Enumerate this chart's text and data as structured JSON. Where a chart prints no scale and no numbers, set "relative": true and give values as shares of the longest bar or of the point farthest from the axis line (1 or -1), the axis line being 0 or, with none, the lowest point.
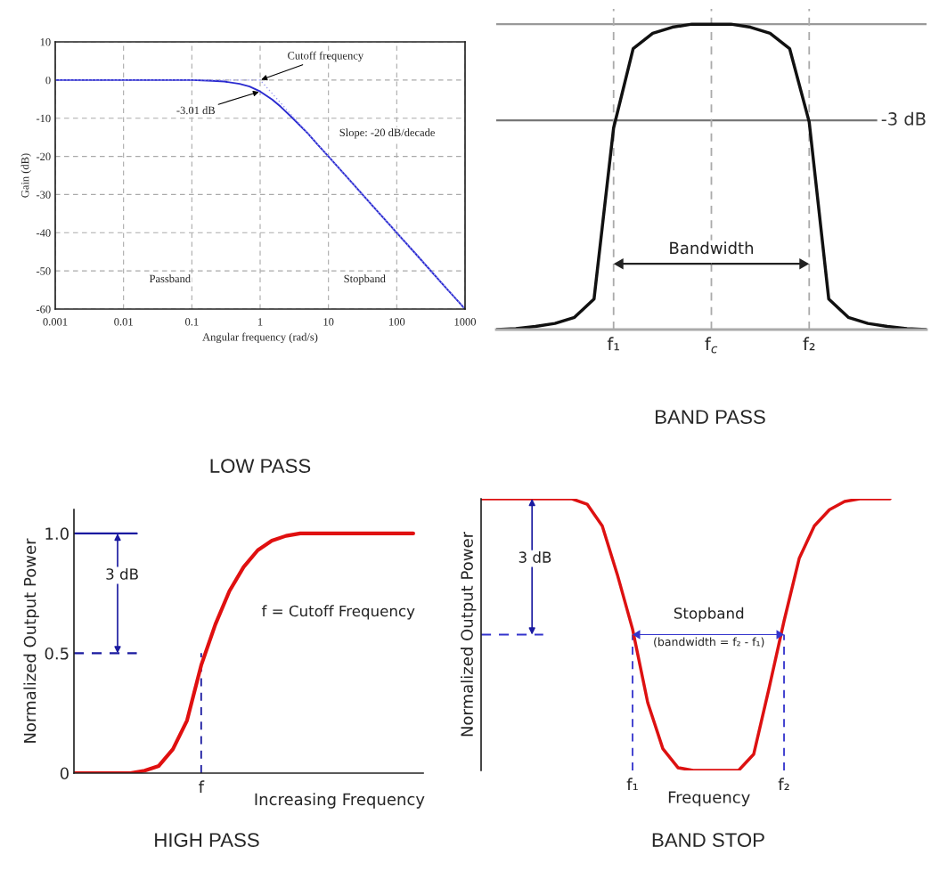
{
  "chart_data": [
    {
      "type": "line",
      "title": "LOW PASS",
      "xlabel": "Angular frequency (rad/s)",
      "ylabel": "Gain (dB)",
      "log": "x",
      "xlim": [
        0.001,
        1000
      ],
      "xticks": [
        0.001,
        0.01,
        0.1,
        1,
        10,
        100,
        1000
      ],
      "ylim": [
        -60,
        10
      ],
      "yticks": [
        -60,
        -50,
        -40,
        -30,
        -20,
        -10,
        0,
        10
      ],
      "grid": true,
      "series": [
        {
          "color": "#2b2bd0",
          "x": [
            0.001,
            0.01,
            0.1,
            0.2,
            0.3,
            0.5,
            0.7,
            1,
            1.5,
            2,
            3,
            5,
            7,
            10,
            20,
            50,
            100,
            200,
            500,
            1000
          ],
          "values": [
            0,
            0,
            0,
            -0.2,
            -0.4,
            -1,
            -1.7,
            -3,
            -5.1,
            -7,
            -10,
            -14,
            -17,
            -20,
            -26,
            -34,
            -40,
            -46,
            -54,
            -60
          ]
        },
        {
          "color": "#9a9af0",
          "line_style": "dotted",
          "x": [
            0.001,
            1,
            1000
          ],
          "values": [
            0,
            0,
            -60
          ]
        }
      ],
      "annotations": [
        {
          "text": "Cutoff frequency",
          "x": 1,
          "y": 0
        },
        {
          "text": "-3.01 dB",
          "x": 1,
          "y": -3.01
        },
        "Slope: -20 dB/decade",
        "Passband",
        "Stopband"
      ]
    },
    {
      "type": "line",
      "title": "BAND PASS",
      "relative": true,
      "categories": [
        null,
        null,
        null,
        null,
        null,
        null,
        "f₁",
        null,
        null,
        null,
        null,
        "f$_{c}$",
        null,
        null,
        null,
        null,
        "f₂",
        null,
        null,
        null,
        null,
        null,
        null
      ],
      "series": [
        {
          "color": "#111111",
          "values": [
            0,
            0.003,
            0.01,
            0.02,
            0.04,
            0.1,
            0.66,
            0.92,
            0.97,
            0.99,
            1,
            1,
            1,
            0.99,
            0.97,
            0.92,
            0.68,
            0.1,
            0.04,
            0.02,
            0.01,
            0.003,
            0
          ]
        }
      ],
      "ref_lines": [
        {
          "axis": "y",
          "value": 1,
          "color": "#999999"
        },
        {
          "axis": "y",
          "value": 0.685,
          "label": "-3 dB",
          "color": "#777777"
        },
        {
          "axis": "x",
          "value": "f₁",
          "color": "#aaaaaa",
          "line_style": "dashed"
        },
        {
          "axis": "x",
          "value": "f$_{c}$",
          "color": "#aaaaaa",
          "line_style": "dashed"
        },
        {
          "axis": "x",
          "value": "f₂",
          "color": "#aaaaaa",
          "line_style": "dashed"
        }
      ],
      "annotations": [
        "Bandwidth"
      ]
    },
    {
      "type": "line",
      "title": "HIGH PASS",
      "xlabel": "Increasing Frequency",
      "ylabel": "Normalized Output Power",
      "categories": [
        null,
        null,
        null,
        null,
        null,
        null,
        null,
        null,
        null,
        "f",
        null,
        null,
        null,
        null,
        null,
        null,
        null,
        null,
        null,
        null,
        null,
        null,
        null,
        null,
        null
      ],
      "ylim": [
        0,
        1.1
      ],
      "yticks": [
        0,
        0.5,
        {
          "value": 1,
          "label": "1.0"
        }
      ],
      "series": [
        {
          "color": "#e01010",
          "values": [
            0,
            0,
            0,
            0,
            0,
            0.01,
            0.03,
            0.1,
            0.22,
            0.45,
            0.62,
            0.76,
            0.86,
            0.93,
            0.97,
            0.99,
            1,
            1,
            1,
            1,
            1,
            1,
            1,
            1,
            1
          ]
        }
      ],
      "ref_lines": [
        {
          "axis": "y",
          "value": 1,
          "color": "#1a1aa0"
        },
        {
          "axis": "y",
          "value": 0.5,
          "color": "#1a1aa0",
          "line_style": "dashed"
        },
        {
          "axis": "x",
          "value": "f",
          "color": "#1a1aa0",
          "line_style": "dashed"
        }
      ],
      "annotations": [
        "3 dB",
        "f = Cutoff Frequency"
      ]
    },
    {
      "type": "line",
      "title": "BAND STOP",
      "relative": true,
      "xlabel": "Frequency",
      "ylabel": "Normalized Output Power",
      "categories": [
        null,
        null,
        null,
        null,
        null,
        null,
        null,
        null,
        null,
        null,
        "f₁",
        null,
        null,
        null,
        null,
        null,
        null,
        null,
        null,
        null,
        "f₂",
        null,
        null,
        null,
        null,
        null,
        null,
        null
      ],
      "series": [
        {
          "color": "#dd1111",
          "values": [
            1,
            1,
            1,
            1,
            1,
            1,
            1,
            0.98,
            0.9,
            0.72,
            0.52,
            0.25,
            0.08,
            0.01,
            0,
            0,
            0,
            0,
            0.06,
            0.3,
            0.55,
            0.78,
            0.9,
            0.96,
            0.99,
            1,
            1,
            1
          ]
        }
      ],
      "ref_lines": [
        {
          "axis": "y",
          "value": 0.5,
          "color": "#3333cc",
          "line_style": "dashed"
        },
        {
          "axis": "x",
          "value": "f₁",
          "color": "#3333cc",
          "line_style": "dashed"
        },
        {
          "axis": "x",
          "value": "f₂",
          "color": "#3333cc",
          "line_style": "dashed"
        }
      ],
      "annotations": [
        "3 dB",
        "Stopband",
        "(bandwidth = f₂ - f₁)"
      ]
    }
  ]
}
